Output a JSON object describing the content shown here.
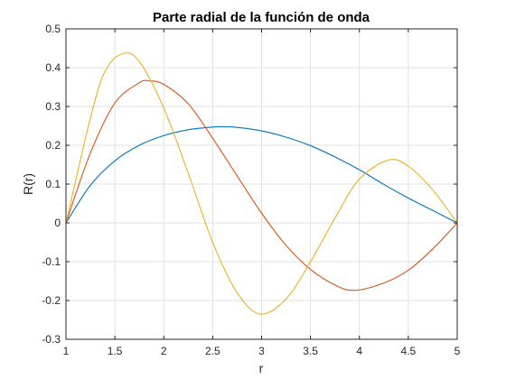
{
  "chart_data": {
    "type": "line",
    "title": "Parte radial de la función de onda",
    "xlabel": "r",
    "ylabel": "R(r)",
    "xlim": [
      1,
      5
    ],
    "ylim": [
      -0.3,
      0.5
    ],
    "grid": true,
    "x_ticks": [
      "1",
      "1.5",
      "2",
      "2.5",
      "3",
      "3.5",
      "4",
      "4.5",
      "5"
    ],
    "y_ticks": [
      "-0.3",
      "-0.2",
      "-0.1",
      "0",
      "0.1",
      "0.2",
      "0.3",
      "0.4",
      "0.5"
    ],
    "series": [
      {
        "color": "#0072BD",
        "x": [
          1,
          1.25,
          1.5,
          1.75,
          2,
          2.25,
          2.5,
          2.6,
          2.75,
          3,
          3.25,
          3.5,
          3.75,
          4,
          4.25,
          4.5,
          4.75,
          5
        ],
        "y": [
          0,
          0.097,
          0.16,
          0.2,
          0.225,
          0.24,
          0.247,
          0.248,
          0.246,
          0.237,
          0.221,
          0.199,
          0.17,
          0.137,
          0.099,
          0.064,
          0.032,
          0
        ]
      },
      {
        "color": "#D95319",
        "x": [
          1,
          1.25,
          1.5,
          1.75,
          1.85,
          2,
          2.25,
          2.5,
          2.75,
          3,
          3.25,
          3.5,
          3.75,
          3.95,
          4.25,
          4.5,
          4.75,
          5
        ],
        "y": [
          0,
          0.18,
          0.309,
          0.361,
          0.366,
          0.357,
          0.307,
          0.218,
          0.121,
          0.025,
          -0.058,
          -0.12,
          -0.16,
          -0.174,
          -0.155,
          -0.122,
          -0.067,
          0
        ]
      },
      {
        "color": "#EDB120",
        "x": [
          1,
          1.25,
          1.4,
          1.58,
          1.75,
          2,
          2.25,
          2.5,
          2.75,
          2.99,
          3.25,
          3.5,
          3.75,
          4,
          4.3,
          4.5,
          4.75,
          5
        ],
        "y": [
          0,
          0.27,
          0.391,
          0.436,
          0.416,
          0.296,
          0.128,
          -0.05,
          -0.18,
          -0.235,
          -0.196,
          -0.1,
          0.012,
          0.113,
          0.162,
          0.146,
          0.085,
          0
        ]
      }
    ]
  }
}
